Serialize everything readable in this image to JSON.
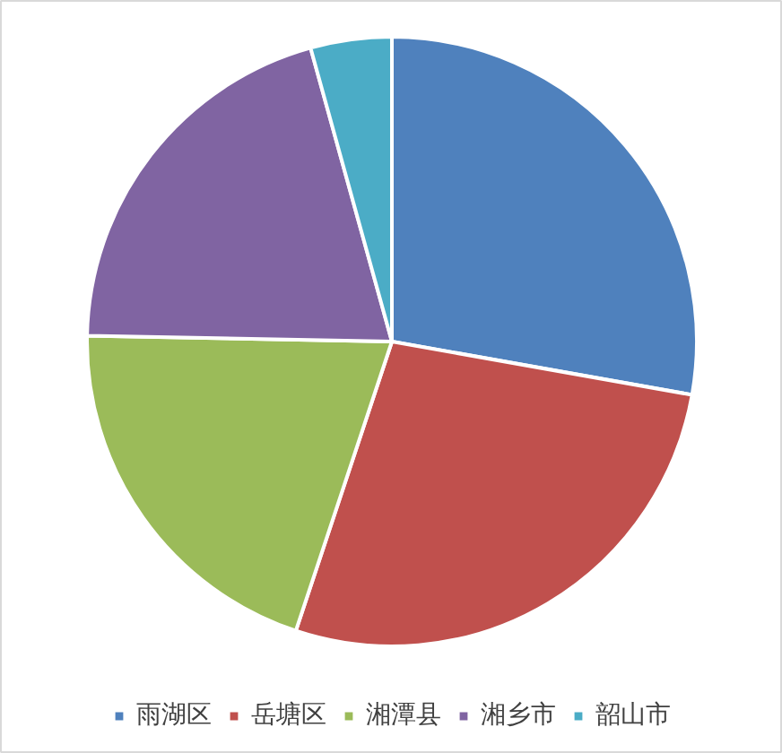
{
  "chart_data": {
    "type": "pie",
    "categories": [
      "雨湖区",
      "岳塘区",
      "湘潭县",
      "湘乡市",
      "韶山市"
    ],
    "values": [
      27.8,
      27.3,
      20.2,
      20.4,
      4.3
    ],
    "colors": [
      "#4f81bd",
      "#c0504d",
      "#9bbb59",
      "#8064a2",
      "#4bacc6"
    ],
    "legend": "bottom"
  }
}
